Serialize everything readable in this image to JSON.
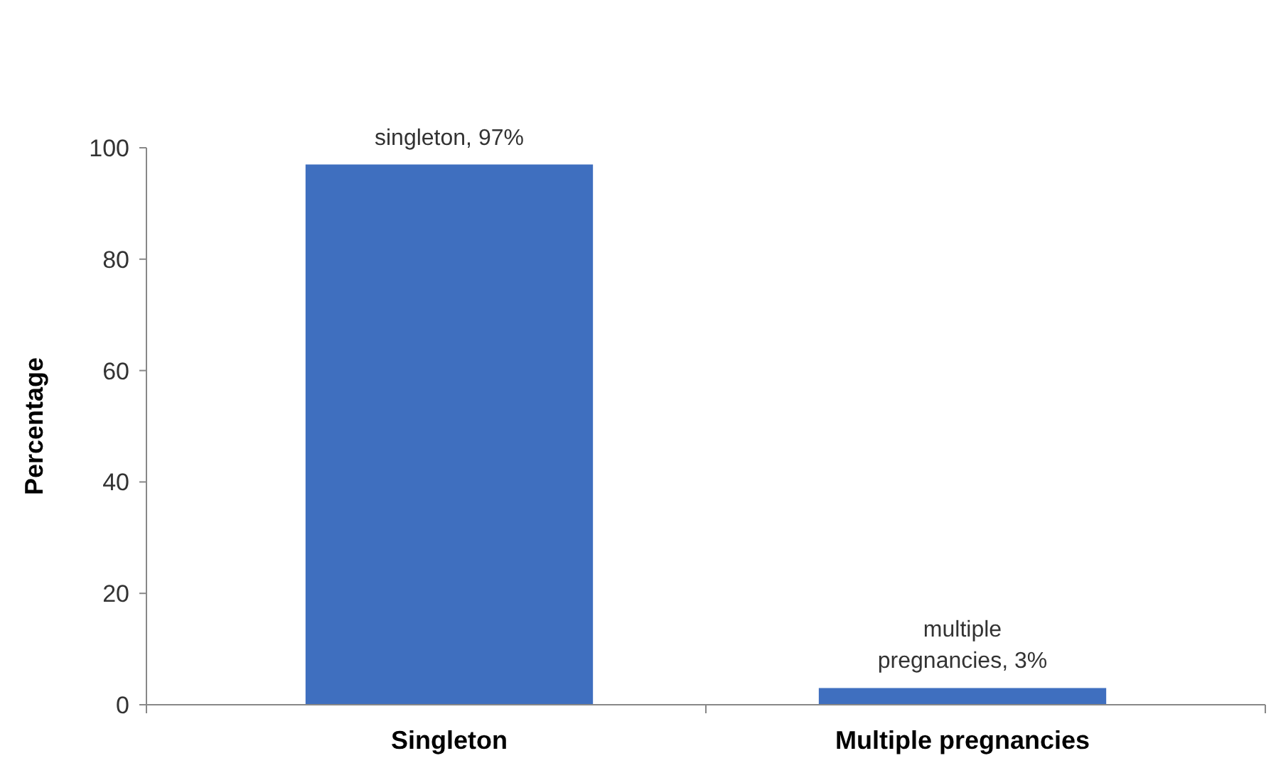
{
  "chart_data": {
    "type": "bar",
    "ylabel": "Percentage",
    "categories": [
      "Singleton",
      "Multiple pregnancies"
    ],
    "values": [
      97,
      3
    ],
    "color": "#3f6fbf",
    "value_labels": [
      "singleton, 97%",
      "multiple pregnancies, 3%"
    ],
    "ylim": [
      0,
      100
    ],
    "yticks": [
      0,
      20,
      40,
      60,
      80,
      100
    ],
    "grid": false
  }
}
